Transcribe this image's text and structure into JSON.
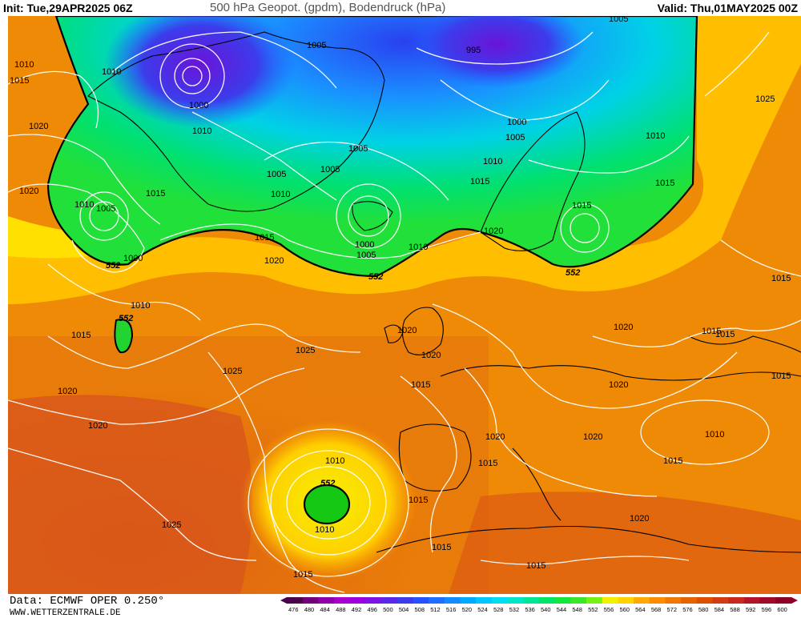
{
  "header": {
    "init": "Init: Tue,29APR2025 06Z",
    "title": "500 hPa Geopot. (gpdm), Bodendruck (hPa)",
    "valid": "Valid: Thu,01MAY2025 00Z"
  },
  "footer": {
    "data_source": "Data: ECMWF OPER 0.250°",
    "website": "WWW.WETTERZENTRALE.DE"
  },
  "colorbar": {
    "ticks": [
      "476",
      "480",
      "484",
      "488",
      "492",
      "496",
      "500",
      "504",
      "508",
      "512",
      "516",
      "520",
      "524",
      "528",
      "532",
      "536",
      "540",
      "544",
      "548",
      "552",
      "556",
      "560",
      "564",
      "568",
      "572",
      "576",
      "580",
      "584",
      "588",
      "592",
      "596",
      "600"
    ],
    "colors": [
      "#4a004a",
      "#70007a",
      "#9000a8",
      "#a800d0",
      "#9a00e0",
      "#7d14e6",
      "#5a28e8",
      "#3c3ceb",
      "#2850ff",
      "#1e6eff",
      "#148cff",
      "#00aaff",
      "#00c8ff",
      "#00dcf0",
      "#00e6c8",
      "#00e696",
      "#00e664",
      "#14e63c",
      "#3ce628",
      "#78f014",
      "#f0f000",
      "#ffd200",
      "#ffaa00",
      "#ff8c00",
      "#f07800",
      "#e66400",
      "#dc5000",
      "#d23c14",
      "#c8281e",
      "#b41428",
      "#a00a28",
      "#8c0028"
    ]
  },
  "pressure_labels": [
    {
      "id": "p1",
      "text": "1010"
    },
    {
      "id": "p2",
      "text": "1015"
    },
    {
      "id": "p3",
      "text": "1020"
    },
    {
      "id": "p4",
      "text": "1020"
    },
    {
      "id": "p5",
      "text": "1010"
    },
    {
      "id": "p6",
      "text": "1005"
    },
    {
      "id": "p7",
      "text": "1015"
    },
    {
      "id": "p8",
      "text": "1000"
    },
    {
      "id": "p9",
      "text": "1010"
    },
    {
      "id": "p10",
      "text": "1015"
    },
    {
      "id": "p11",
      "text": "1020"
    },
    {
      "id": "p12",
      "text": "1025"
    },
    {
      "id": "p13",
      "text": "1025"
    },
    {
      "id": "p14",
      "text": "1020"
    },
    {
      "id": "p15",
      "text": "1020"
    },
    {
      "id": "p16",
      "text": "1025"
    },
    {
      "id": "p17",
      "text": "1000"
    },
    {
      "id": "p18",
      "text": "1010"
    },
    {
      "id": "p19",
      "text": "1005"
    },
    {
      "id": "p20",
      "text": "1005"
    },
    {
      "id": "p21",
      "text": "1005"
    },
    {
      "id": "p22",
      "text": "1010"
    },
    {
      "id": "p23",
      "text": "1005"
    },
    {
      "id": "p24",
      "text": "1000"
    },
    {
      "id": "p25",
      "text": "1005"
    },
    {
      "id": "p26",
      "text": "1010"
    },
    {
      "id": "p27",
      "text": "995"
    },
    {
      "id": "p28",
      "text": "1000"
    },
    {
      "id": "p29",
      "text": "1005"
    },
    {
      "id": "p30",
      "text": "1010"
    },
    {
      "id": "p31",
      "text": "1015"
    },
    {
      "id": "p32",
      "text": "1010"
    },
    {
      "id": "p33",
      "text": "1020"
    },
    {
      "id": "p34",
      "text": "1015"
    },
    {
      "id": "p35",
      "text": "1015"
    },
    {
      "id": "p36",
      "text": "1025"
    },
    {
      "id": "p37",
      "text": "1005"
    },
    {
      "id": "p38",
      "text": "1020"
    },
    {
      "id": "p39",
      "text": "1020"
    },
    {
      "id": "p40",
      "text": "1015"
    },
    {
      "id": "p41",
      "text": "1020"
    },
    {
      "id": "p42",
      "text": "1020"
    },
    {
      "id": "p43",
      "text": "1010"
    },
    {
      "id": "p44",
      "text": "1015"
    },
    {
      "id": "p45",
      "text": "1015"
    },
    {
      "id": "p46",
      "text": "1010"
    },
    {
      "id": "p47",
      "text": "1005"
    },
    {
      "id": "p48",
      "text": "1015"
    },
    {
      "id": "p49",
      "text": "1015"
    },
    {
      "id": "p50",
      "text": "1020"
    },
    {
      "id": "p51",
      "text": "1015"
    },
    {
      "id": "p52",
      "text": "1015"
    },
    {
      "id": "p53",
      "text": "1020"
    },
    {
      "id": "p54",
      "text": "1015"
    },
    {
      "id": "p55",
      "text": "1015"
    },
    {
      "id": "p56",
      "text": "1020"
    },
    {
      "id": "p57",
      "text": "1015"
    },
    {
      "id": "p58",
      "text": "1010"
    },
    {
      "id": "p59",
      "text": "1015"
    },
    {
      "id": "p60",
      "text": "1010"
    },
    {
      "id": "p61",
      "text": "1020"
    },
    {
      "id": "p62",
      "text": "1005"
    },
    {
      "id": "p63",
      "text": "1010"
    },
    {
      "id": "p64",
      "text": "1000"
    },
    {
      "id": "p65",
      "text": "1015"
    }
  ],
  "geopot_labels": [
    {
      "id": "g1",
      "text": "552"
    },
    {
      "id": "g2",
      "text": "552"
    },
    {
      "id": "g3",
      "text": "552"
    },
    {
      "id": "g4",
      "text": "552"
    },
    {
      "id": "g5",
      "text": "552"
    }
  ]
}
